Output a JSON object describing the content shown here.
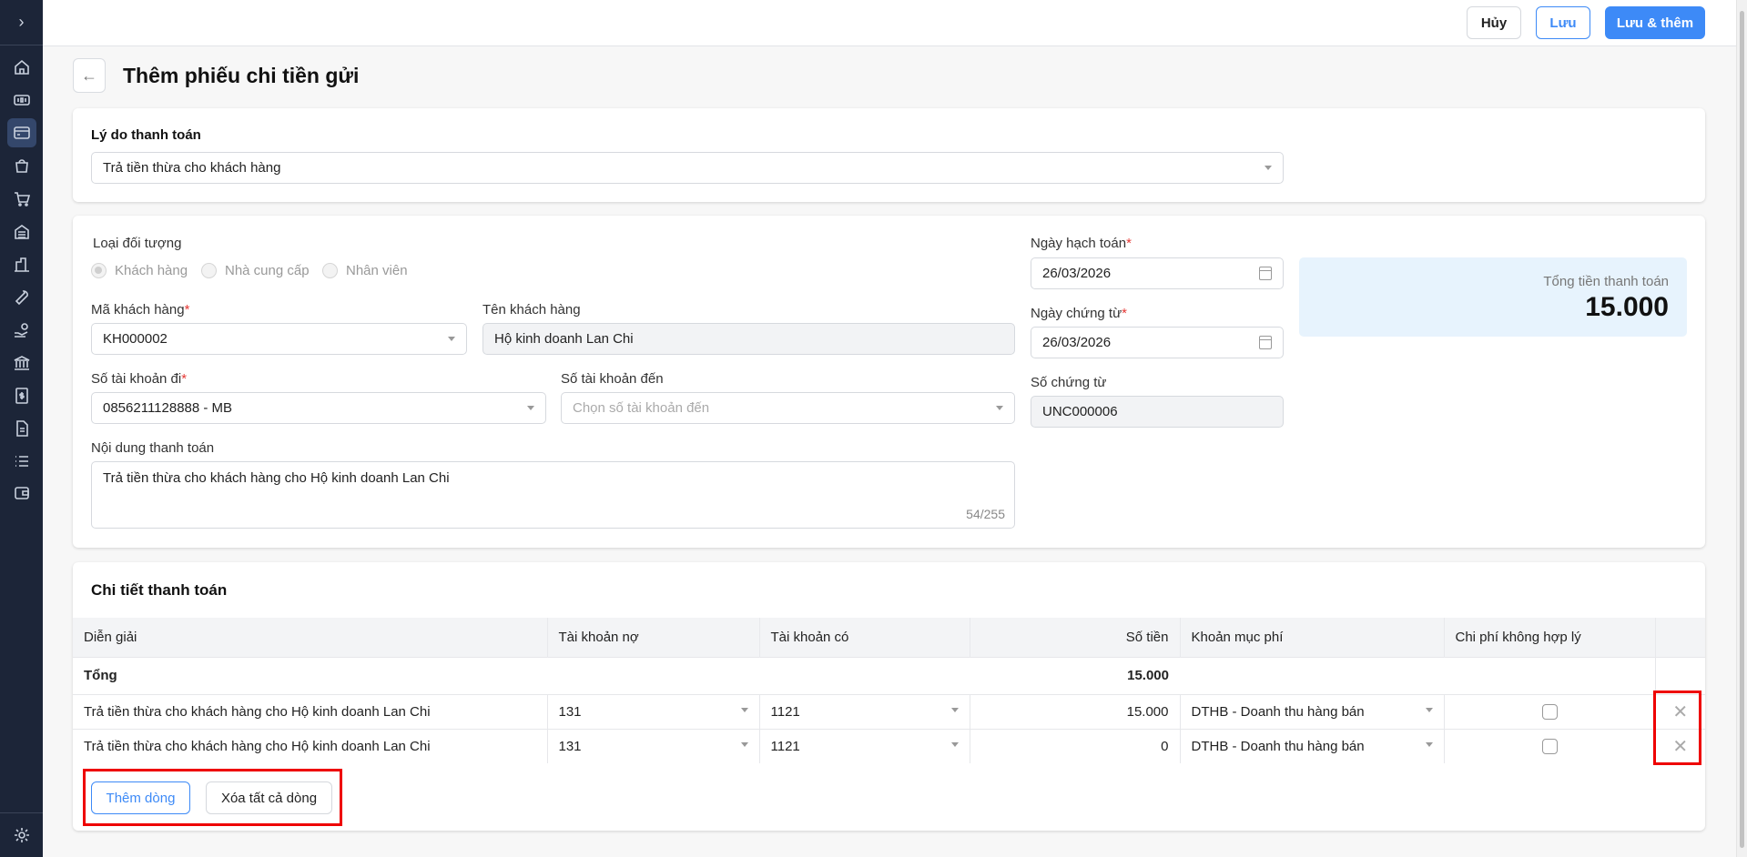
{
  "sidebar": {
    "toggle_icon": "chevron-right-icon",
    "items": [
      "home-icon",
      "ticket-icon",
      "credit-card-icon",
      "shopping-bag-icon",
      "cart-icon",
      "warehouse-icon",
      "building-icon",
      "tool-icon",
      "hand-coin-icon",
      "bank-icon",
      "receipt-dollar-icon",
      "document-icon",
      "list-icon",
      "wallet-icon"
    ],
    "active_index": 2,
    "settings_icon": "gear-icon"
  },
  "toolbar": {
    "cancel": "Hủy",
    "save": "Lưu",
    "save_and_add": "Lưu & thêm"
  },
  "page": {
    "title": "Thêm phiếu chi tiền gửi"
  },
  "reason": {
    "label": "Lý do thanh toán",
    "value": "Trả tiền thừa cho khách hàng"
  },
  "object_type": {
    "label": "Loại đối tượng",
    "options": [
      "Khách hàng",
      "Nhà cung cấp",
      "Nhân viên"
    ],
    "selected": "Khách hàng"
  },
  "customer_code": {
    "label": "Mã khách hàng",
    "value": "KH000002"
  },
  "customer_name": {
    "label": "Tên khách hàng",
    "value": "Hộ kinh doanh Lan Chi"
  },
  "from_account": {
    "label": "Số tài khoản đi",
    "value": "0856211128888 - MB"
  },
  "to_account": {
    "label": "Số tài khoản đến",
    "placeholder": "Chọn số tài khoản đến"
  },
  "content": {
    "label": "Nội dung thanh toán",
    "value": "Trả tiền thừa cho khách hàng cho Hộ kinh doanh Lan Chi",
    "counter": "54/255"
  },
  "posting_date": {
    "label": "Ngày hạch toán",
    "value": "26/03/2026"
  },
  "voucher_date": {
    "label": "Ngày chứng từ",
    "value": "26/03/2026"
  },
  "voucher_no": {
    "label": "Số chứng từ",
    "value": "UNC000006"
  },
  "total": {
    "label": "Tổng tiền thanh toán",
    "value": "15.000"
  },
  "details": {
    "title": "Chi tiết thanh toán",
    "columns": [
      "Diễn giải",
      "Tài khoản nợ",
      "Tài khoản có",
      "Số tiền",
      "Khoản mục phí",
      "Chi phí không hợp lý"
    ],
    "total_row": {
      "label": "Tổng",
      "amount": "15.000"
    },
    "rows": [
      {
        "desc": "Trả tiền thừa cho khách hàng cho Hộ kinh doanh Lan Chi",
        "debit": "131",
        "credit": "1121",
        "amount": "15.000",
        "fee": "DTHB - Doanh thu hàng bán",
        "unreasonable": false
      },
      {
        "desc": "Trả tiền thừa cho khách hàng cho Hộ kinh doanh Lan Chi",
        "debit": "131",
        "credit": "1121",
        "amount": "0",
        "fee": "DTHB - Doanh thu hàng bán",
        "unreasonable": false
      }
    ],
    "add_row": "Thêm dòng",
    "delete_all": "Xóa tất cả dòng"
  },
  "colors": {
    "primary": "#3d8af7",
    "sidebar": "#1c2538",
    "highlight": "#ee0000",
    "total_bg": "#e7f3fd"
  }
}
